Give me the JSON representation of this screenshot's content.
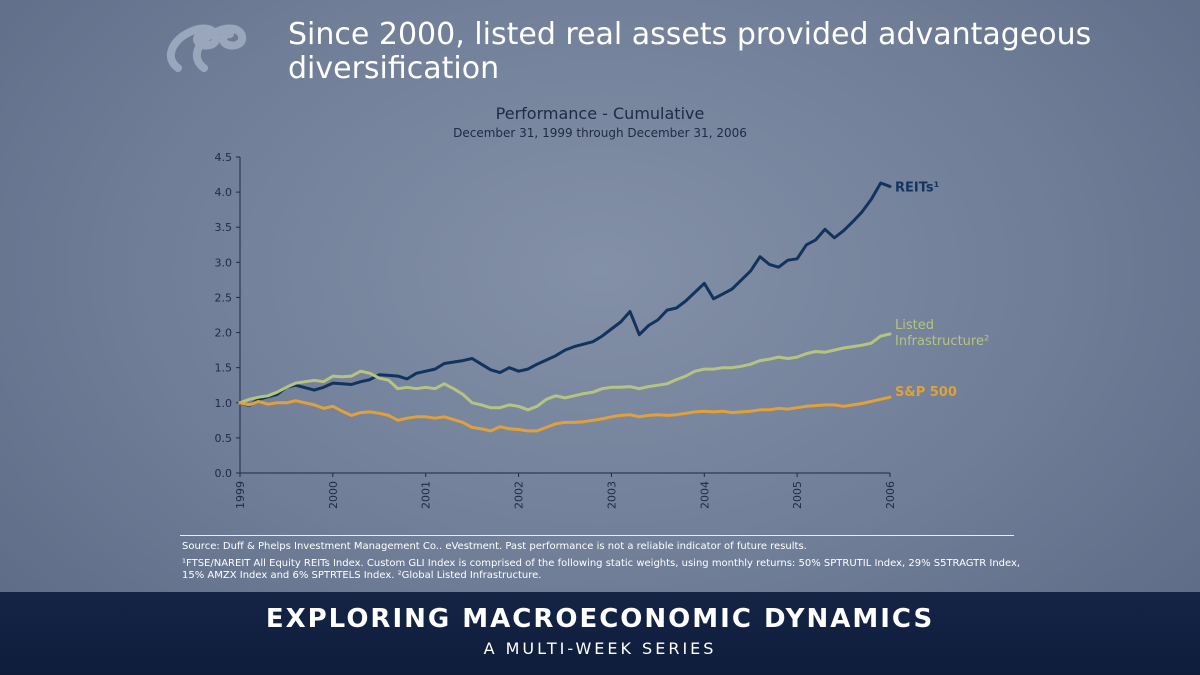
{
  "headline": "Since 2000, listed real assets provided advantageous diversification",
  "logo": {
    "icon": "dp-logo-icon"
  },
  "source_text": "Source:  Duff & Phelps Investment Management Co.. eVestment. Past performance is not a reliable indicator of future results.",
  "footnote_text": "¹FTSE/NAREIT All Equity REITs Index. Custom GLI Index is comprised of the following static weights, using monthly returns: 50% SPTRUTIL Index, 29% S5TRAGTR Index, 15% AMZX Index and 6% SPTRTELS Index. ²Global Listed Infrastructure.",
  "banner": {
    "title": "EXPLORING MACROECONOMIC DYNAMICS",
    "subtitle": "A MULTI-WEEK SERIES"
  },
  "chart_data": {
    "type": "line",
    "title": "Performance - Cumulative",
    "subtitle": "December 31, 1999 through December 31, 2006",
    "xlabel": "",
    "ylabel": "",
    "xlim": [
      1999,
      2006
    ],
    "ylim": [
      0,
      4.5
    ],
    "x_ticks": [
      "1999",
      "2000",
      "2001",
      "2002",
      "2003",
      "2004",
      "2005",
      "2006"
    ],
    "y_ticks": [
      "0.0",
      "0.5",
      "1.0",
      "1.5",
      "2.0",
      "2.5",
      "3.0",
      "3.5",
      "4.0",
      "4.5"
    ],
    "y_tick_values": [
      0,
      0.5,
      1.0,
      1.5,
      2.0,
      2.5,
      3.0,
      3.5,
      4.0,
      4.5
    ],
    "grid": false,
    "series": [
      {
        "name": "REITs¹",
        "color": "#13335f",
        "x": [
          1999.0,
          1999.1,
          1999.2,
          1999.4,
          1999.5,
          1999.6,
          1999.8,
          1999.9,
          2000.0,
          2000.1,
          2000.2,
          2000.3,
          2000.4,
          2000.5,
          2000.6,
          2000.7,
          2000.8,
          2000.9,
          2001.0,
          2001.1,
          2001.2,
          2001.4,
          2001.5,
          2001.6,
          2001.7,
          2001.8,
          2001.9,
          2002.0,
          2002.1,
          2002.2,
          2002.4,
          2002.5,
          2002.6,
          2002.8,
          2002.9,
          2003.0,
          2003.1,
          2003.2,
          2003.3,
          2003.4,
          2003.5,
          2003.6,
          2003.7,
          2003.8,
          2004.0,
          2004.1,
          2004.2,
          2004.3,
          2004.4,
          2004.5,
          2004.6,
          2004.7,
          2004.8,
          2004.9,
          2005.0,
          2005.1,
          2005.2,
          2005.3,
          2005.4,
          2005.5,
          2005.6,
          2005.7,
          2005.8,
          2005.9,
          2006.0
        ],
        "y": [
          1.0,
          0.96,
          1.05,
          1.12,
          1.22,
          1.25,
          1.18,
          1.22,
          1.28,
          1.27,
          1.26,
          1.3,
          1.33,
          1.4,
          1.39,
          1.38,
          1.34,
          1.42,
          1.45,
          1.48,
          1.56,
          1.6,
          1.63,
          1.55,
          1.47,
          1.43,
          1.5,
          1.45,
          1.48,
          1.55,
          1.67,
          1.75,
          1.8,
          1.87,
          1.95,
          2.05,
          2.15,
          2.3,
          1.97,
          2.1,
          2.18,
          2.32,
          2.35,
          2.45,
          2.7,
          2.48,
          2.55,
          2.62,
          2.75,
          2.88,
          3.08,
          2.97,
          2.93,
          3.03,
          3.05,
          3.25,
          3.32,
          3.47,
          3.35,
          3.45,
          3.58,
          3.72,
          3.9,
          4.13,
          4.08
        ]
      },
      {
        "name": "Listed Infrastructure²",
        "color": "#b5c480",
        "x": [
          1999.0,
          1999.1,
          1999.2,
          1999.3,
          1999.4,
          1999.5,
          1999.6,
          1999.7,
          1999.8,
          1999.9,
          2000.0,
          2000.1,
          2000.2,
          2000.3,
          2000.4,
          2000.5,
          2000.6,
          2000.7,
          2000.8,
          2000.9,
          2001.0,
          2001.1,
          2001.2,
          2001.3,
          2001.4,
          2001.5,
          2001.6,
          2001.7,
          2001.8,
          2001.9,
          2002.0,
          2002.1,
          2002.2,
          2002.3,
          2002.4,
          2002.5,
          2002.6,
          2002.7,
          2002.8,
          2002.9,
          2003.0,
          2003.1,
          2003.2,
          2003.3,
          2003.4,
          2003.5,
          2003.6,
          2003.7,
          2003.8,
          2003.9,
          2004.0,
          2004.1,
          2004.2,
          2004.3,
          2004.4,
          2004.5,
          2004.6,
          2004.7,
          2004.8,
          2004.9,
          2005.0,
          2005.1,
          2005.2,
          2005.3,
          2005.4,
          2005.5,
          2005.6,
          2005.7,
          2005.8,
          2005.9,
          2006.0
        ],
        "y": [
          1.0,
          1.05,
          1.08,
          1.1,
          1.15,
          1.22,
          1.28,
          1.3,
          1.32,
          1.3,
          1.38,
          1.37,
          1.38,
          1.45,
          1.42,
          1.35,
          1.32,
          1.2,
          1.22,
          1.2,
          1.22,
          1.2,
          1.27,
          1.2,
          1.12,
          1.0,
          0.97,
          0.93,
          0.93,
          0.97,
          0.95,
          0.9,
          0.95,
          1.05,
          1.1,
          1.07,
          1.1,
          1.13,
          1.15,
          1.2,
          1.22,
          1.22,
          1.23,
          1.2,
          1.23,
          1.25,
          1.27,
          1.33,
          1.38,
          1.45,
          1.48,
          1.48,
          1.5,
          1.5,
          1.52,
          1.55,
          1.6,
          1.62,
          1.65,
          1.63,
          1.65,
          1.7,
          1.73,
          1.72,
          1.75,
          1.78,
          1.8,
          1.82,
          1.85,
          1.95,
          1.98
        ]
      },
      {
        "name": "S&P 500",
        "color": "#e0a13a",
        "x": [
          1999.0,
          1999.1,
          1999.2,
          1999.3,
          1999.4,
          1999.5,
          1999.6,
          1999.7,
          1999.8,
          1999.9,
          2000.0,
          2000.1,
          2000.2,
          2000.3,
          2000.4,
          2000.5,
          2000.6,
          2000.7,
          2000.8,
          2000.9,
          2001.0,
          2001.1,
          2001.2,
          2001.3,
          2001.4,
          2001.5,
          2001.6,
          2001.7,
          2001.8,
          2001.9,
          2002.0,
          2002.1,
          2002.2,
          2002.3,
          2002.4,
          2002.5,
          2002.6,
          2002.7,
          2002.8,
          2002.9,
          2003.0,
          2003.1,
          2003.2,
          2003.3,
          2003.4,
          2003.5,
          2003.6,
          2003.7,
          2003.8,
          2003.9,
          2004.0,
          2004.1,
          2004.2,
          2004.3,
          2004.4,
          2004.5,
          2004.6,
          2004.7,
          2004.8,
          2004.9,
          2005.0,
          2005.1,
          2005.2,
          2005.3,
          2005.4,
          2005.5,
          2005.6,
          2005.7,
          2005.8,
          2005.9,
          2006.0
        ],
        "y": [
          1.0,
          0.97,
          1.02,
          0.98,
          1.0,
          1.0,
          1.03,
          1.0,
          0.97,
          0.92,
          0.95,
          0.88,
          0.82,
          0.86,
          0.87,
          0.85,
          0.82,
          0.75,
          0.78,
          0.8,
          0.8,
          0.78,
          0.8,
          0.76,
          0.72,
          0.65,
          0.63,
          0.6,
          0.66,
          0.63,
          0.62,
          0.6,
          0.6,
          0.65,
          0.7,
          0.72,
          0.72,
          0.73,
          0.75,
          0.77,
          0.8,
          0.82,
          0.83,
          0.8,
          0.82,
          0.83,
          0.82,
          0.83,
          0.85,
          0.87,
          0.88,
          0.87,
          0.88,
          0.86,
          0.87,
          0.88,
          0.9,
          0.9,
          0.92,
          0.91,
          0.93,
          0.95,
          0.96,
          0.97,
          0.97,
          0.95,
          0.97,
          0.99,
          1.02,
          1.05,
          1.08
        ]
      }
    ]
  }
}
